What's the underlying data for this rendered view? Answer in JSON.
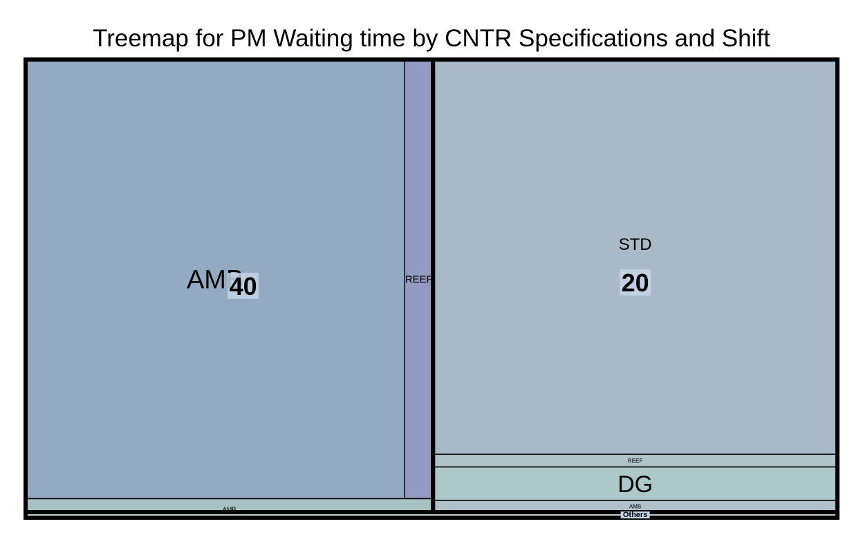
{
  "chart_data": {
    "type": "treemap",
    "title": "Treemap for PM Waiting time by CNTR Specifications and Shift",
    "xlabel": "",
    "ylabel": "",
    "groups": [
      {
        "label": "40",
        "value": 40.3,
        "color": "#93aac2",
        "children": [
          {
            "label": "AMB",
            "value": 37.5,
            "color": "#93aac2"
          },
          {
            "label": "REEF",
            "value": 2.8,
            "color": "#939bc2"
          },
          {
            "label": "AMB",
            "value": 0.3,
            "color": "#a6c2c2"
          }
        ]
      },
      {
        "label": "20",
        "value": 40.0,
        "color": "#aab9c8",
        "children": [
          {
            "label": "STD",
            "value": 36.8,
            "color": "#aab9c8"
          },
          {
            "label": "REEF",
            "value": 0.5,
            "color": "#b0c3c8"
          },
          {
            "label": "DG",
            "value": 2.0,
            "color": "#adc8c8"
          },
          {
            "label": "AMB",
            "value": 0.7,
            "color": "#b0c0c8"
          }
        ]
      },
      {
        "label": "Others",
        "value": 0.4,
        "color": "#c0d0d8",
        "children": []
      }
    ],
    "colors": {
      "border": "#000000",
      "label_box": "#c5d5e8"
    }
  }
}
